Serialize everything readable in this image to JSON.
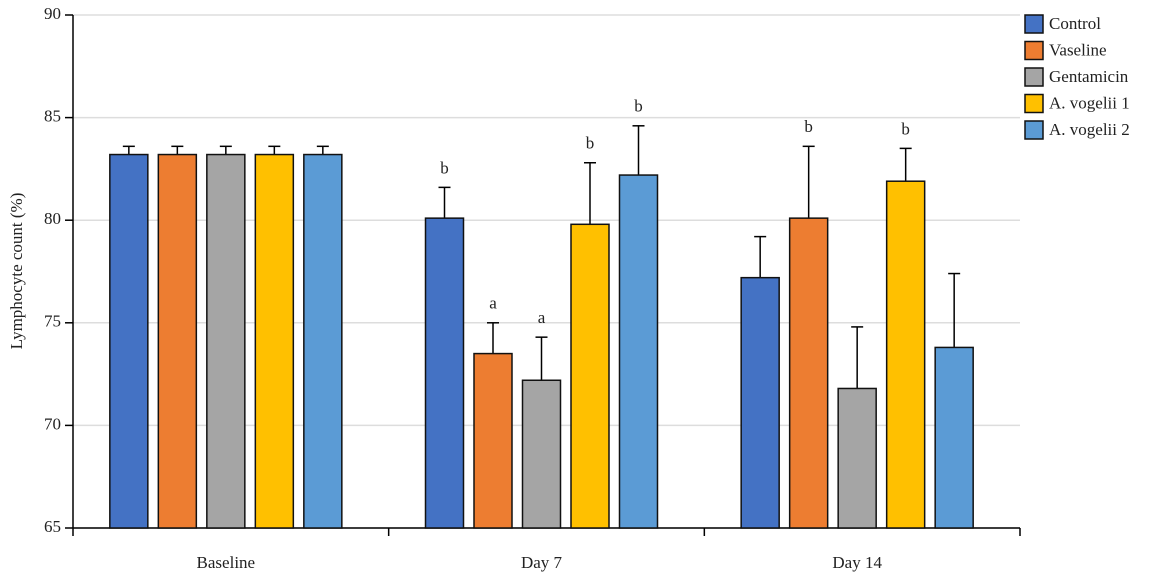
{
  "chart_data": {
    "type": "bar",
    "y_label": "Lymphocyte count (%)",
    "categories": [
      "Baseline",
      "Day 7",
      "Day 14"
    ],
    "series": [
      {
        "name": "Control",
        "color": "#4472c4",
        "values": [
          83.2,
          80.1,
          77.2
        ],
        "errors": [
          0.4,
          1.5,
          2.0
        ],
        "letters": [
          null,
          "b",
          null
        ]
      },
      {
        "name": "Vaseline",
        "color": "#ed7d31",
        "values": [
          83.2,
          73.5,
          80.1
        ],
        "errors": [
          0.4,
          1.5,
          3.5
        ],
        "letters": [
          null,
          "a",
          "b"
        ]
      },
      {
        "name": "Gentamicin",
        "color": "#a5a5a5",
        "values": [
          83.2,
          72.2,
          71.8
        ],
        "errors": [
          0.4,
          2.1,
          3.0
        ],
        "letters": [
          null,
          "a",
          null
        ]
      },
      {
        "name": "A. vogelii 1",
        "color": "#ffc000",
        "values": [
          83.2,
          79.8,
          81.9
        ],
        "errors": [
          0.4,
          3.0,
          1.6
        ],
        "letters": [
          null,
          "b",
          "b"
        ]
      },
      {
        "name": "A. vogelii 2",
        "color": "#5b9bd5",
        "values": [
          83.2,
          82.2,
          73.8
        ],
        "errors": [
          0.4,
          2.4,
          3.6
        ],
        "letters": [
          null,
          "b",
          null
        ]
      }
    ],
    "ylim": [
      65,
      90
    ],
    "yticks": [
      65,
      70,
      75,
      80,
      85,
      90
    ],
    "grid": true,
    "legend": "top-right"
  }
}
